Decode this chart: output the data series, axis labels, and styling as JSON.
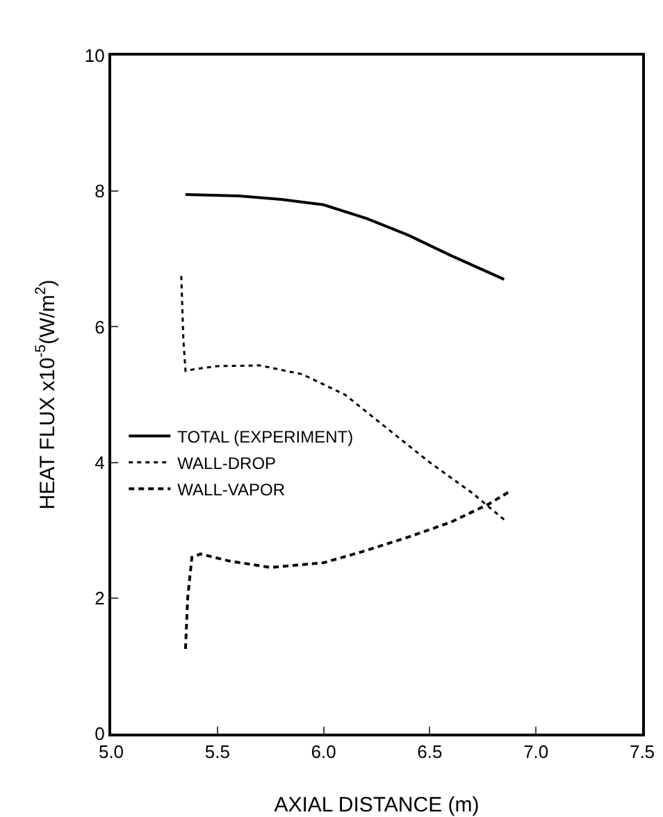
{
  "chart_data": {
    "type": "line",
    "xlabel": "AXIAL DISTANCE (m)",
    "ylabel": "HEAT FLUX x10$^{-5}$(W/m$^{2}$)",
    "xlim": [
      5,
      7.5
    ],
    "xticks": [
      {
        "value": 5,
        "label": "5.0"
      },
      {
        "value": 5.5,
        "label": "5.5"
      },
      {
        "value": 6,
        "label": "6.0"
      },
      {
        "value": 6.5,
        "label": "6.5"
      },
      {
        "value": 7,
        "label": "7.0"
      },
      {
        "value": 7.5,
        "label": "7.5"
      }
    ],
    "ylim": [
      0,
      10
    ],
    "yticks": [
      0,
      2,
      4,
      6,
      8,
      10
    ],
    "grid": false,
    "legend": "left",
    "marker": "none",
    "series": [
      {
        "name": "TOTAL (EXPERIMENT)",
        "color": "#000000",
        "line_style": "solid",
        "x": [
          5.35,
          5.6,
          5.8,
          6.0,
          6.2,
          6.4,
          6.6,
          6.85
        ],
        "values": [
          7.95,
          7.93,
          7.88,
          7.8,
          7.6,
          7.35,
          7.05,
          6.7
        ]
      },
      {
        "name": "WALL-DROP",
        "color": "#000000",
        "line_style": "dotted",
        "x": [
          5.33,
          5.34,
          5.35,
          5.4,
          5.5,
          5.7,
          5.9,
          6.1,
          6.3,
          6.5,
          6.7,
          6.86
        ],
        "values": [
          6.75,
          5.8,
          5.35,
          5.38,
          5.42,
          5.43,
          5.3,
          5.0,
          4.5,
          4.0,
          3.55,
          3.13
        ]
      },
      {
        "name": "WALL-VAPOR",
        "color": "#000000",
        "line_style": "dashed",
        "x": [
          5.35,
          5.36,
          5.38,
          5.42,
          5.55,
          5.75,
          6.0,
          6.2,
          6.4,
          6.6,
          6.78,
          6.87
        ],
        "values": [
          1.25,
          2.0,
          2.6,
          2.65,
          2.55,
          2.45,
          2.52,
          2.7,
          2.9,
          3.12,
          3.39,
          3.56
        ]
      }
    ]
  }
}
